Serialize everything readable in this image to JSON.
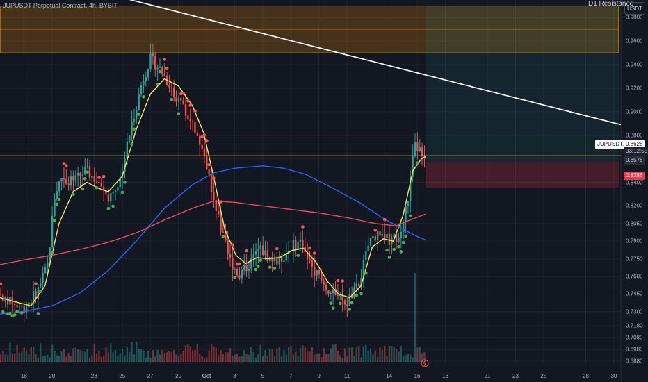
{
  "header": {
    "symbol_title": "JUPUSDT Perpetual Contract, 4h, BYBIT",
    "resistance_label": "D1 Resistance",
    "currency_button": "USDT"
  },
  "price_tags": {
    "symbol_tag": "JUPUSDT.P",
    "current_price": "0.8628",
    "countdown": "03:12:55",
    "level_a": "0.8576",
    "level_b": "0.8356"
  },
  "colors": {
    "bull": "#26a69a",
    "bear": "#ef5350",
    "ma_fast": "#f7e65d",
    "ma_mid": "#2962ff",
    "ma_slow": "#e84a5f",
    "dot_up": "#4caf50",
    "dot_down": "#ff5252",
    "resistance": "#ff9800",
    "trendline": "#ffffff"
  },
  "chart_data": {
    "type": "candlestick",
    "y_axis": {
      "range": [
        0.685,
        0.995
      ],
      "tick_labels": [
        "0.9800",
        "0.9600",
        "0.9400",
        "0.9200",
        "0.9000",
        "0.8800",
        "0.8600",
        "0.8400",
        "0.8200",
        "0.8050",
        "0.7900",
        "0.7750",
        "0.7600",
        "0.7450",
        "0.7300",
        "0.7180",
        "0.7080",
        "0.6980",
        "0.6880"
      ]
    },
    "x_axis": {
      "tick_labels": [
        "18",
        "20",
        "23",
        "25",
        "27",
        "29",
        "Oct",
        "3",
        "5",
        "7",
        "9",
        "11",
        "14",
        "16",
        "18",
        "21",
        "23",
        "25",
        "28",
        "30"
      ],
      "tick_days": [
        18,
        20,
        23,
        25,
        27,
        29,
        31,
        33,
        35,
        37,
        39,
        41,
        44,
        46,
        48,
        51,
        53,
        55,
        58,
        60
      ],
      "range_days": [
        16.3,
        60.5
      ],
      "note_days_from_sep_1": "tick_days 31 = Oct 1"
    },
    "price_path": [
      {
        "day": 16.3,
        "price": 0.745
      },
      {
        "day": 17.0,
        "price": 0.738
      },
      {
        "day": 18.0,
        "price": 0.733
      },
      {
        "day": 19.0,
        "price": 0.748
      },
      {
        "day": 19.7,
        "price": 0.77
      },
      {
        "day": 20.2,
        "price": 0.83
      },
      {
        "day": 20.7,
        "price": 0.845
      },
      {
        "day": 21.5,
        "price": 0.84
      },
      {
        "day": 22.4,
        "price": 0.85
      },
      {
        "day": 23.3,
        "price": 0.84
      },
      {
        "day": 24.0,
        "price": 0.828
      },
      {
        "day": 24.8,
        "price": 0.84
      },
      {
        "day": 25.5,
        "price": 0.88
      },
      {
        "day": 26.4,
        "price": 0.925
      },
      {
        "day": 27.0,
        "price": 0.945
      },
      {
        "day": 27.8,
        "price": 0.935
      },
      {
        "day": 28.7,
        "price": 0.915
      },
      {
        "day": 29.6,
        "price": 0.9
      },
      {
        "day": 30.5,
        "price": 0.875
      },
      {
        "day": 31.2,
        "price": 0.845
      },
      {
        "day": 31.9,
        "price": 0.805
      },
      {
        "day": 32.6,
        "price": 0.775
      },
      {
        "day": 33.3,
        "price": 0.762
      },
      {
        "day": 34.0,
        "price": 0.77
      },
      {
        "day": 34.8,
        "price": 0.784
      },
      {
        "day": 35.5,
        "price": 0.775
      },
      {
        "day": 36.2,
        "price": 0.773
      },
      {
        "day": 37.0,
        "price": 0.785
      },
      {
        "day": 37.8,
        "price": 0.79
      },
      {
        "day": 38.6,
        "price": 0.767
      },
      {
        "day": 39.4,
        "price": 0.752
      },
      {
        "day": 40.2,
        "price": 0.742
      },
      {
        "day": 41.0,
        "price": 0.738
      },
      {
        "day": 41.8,
        "price": 0.752
      },
      {
        "day": 42.6,
        "price": 0.79
      },
      {
        "day": 43.3,
        "price": 0.798
      },
      {
        "day": 44.0,
        "price": 0.79
      },
      {
        "day": 44.8,
        "price": 0.794
      },
      {
        "day": 45.4,
        "price": 0.83
      },
      {
        "day": 45.8,
        "price": 0.87
      },
      {
        "day": 46.2,
        "price": 0.868
      },
      {
        "day": 46.6,
        "price": 0.862
      }
    ],
    "series": [
      {
        "name": "ma_fast",
        "points": [
          [
            16.3,
            0.742
          ],
          [
            17.5,
            0.738
          ],
          [
            18.5,
            0.735
          ],
          [
            19.5,
            0.752
          ],
          [
            20.5,
            0.805
          ],
          [
            21.5,
            0.832
          ],
          [
            22.5,
            0.84
          ],
          [
            23.3,
            0.835
          ],
          [
            24.0,
            0.832
          ],
          [
            25.0,
            0.845
          ],
          [
            26.0,
            0.885
          ],
          [
            27.0,
            0.915
          ],
          [
            28.0,
            0.928
          ],
          [
            29.0,
            0.922
          ],
          [
            30.0,
            0.905
          ],
          [
            30.8,
            0.882
          ],
          [
            31.5,
            0.845
          ],
          [
            32.3,
            0.8
          ],
          [
            33.1,
            0.778
          ],
          [
            33.8,
            0.771
          ],
          [
            34.6,
            0.776
          ],
          [
            35.4,
            0.775
          ],
          [
            36.2,
            0.776
          ],
          [
            37.1,
            0.782
          ],
          [
            37.9,
            0.784
          ],
          [
            38.8,
            0.772
          ],
          [
            39.6,
            0.756
          ],
          [
            40.4,
            0.745
          ],
          [
            41.2,
            0.742
          ],
          [
            42.0,
            0.752
          ],
          [
            42.8,
            0.785
          ],
          [
            43.6,
            0.792
          ],
          [
            44.3,
            0.79
          ],
          [
            45.0,
            0.812
          ],
          [
            45.7,
            0.85
          ],
          [
            46.3,
            0.86
          ],
          [
            46.6,
            0.862
          ]
        ]
      },
      {
        "name": "ma_mid",
        "points": [
          [
            16.3,
            0.728
          ],
          [
            18.0,
            0.73
          ],
          [
            20.0,
            0.735
          ],
          [
            22.0,
            0.746
          ],
          [
            24.0,
            0.765
          ],
          [
            26.0,
            0.79
          ],
          [
            28.0,
            0.818
          ],
          [
            30.0,
            0.838
          ],
          [
            31.5,
            0.848
          ],
          [
            33.0,
            0.852
          ],
          [
            35.0,
            0.854
          ],
          [
            36.5,
            0.852
          ],
          [
            38.0,
            0.847
          ],
          [
            40.0,
            0.835
          ],
          [
            42.0,
            0.822
          ],
          [
            43.5,
            0.81
          ],
          [
            45.0,
            0.8
          ],
          [
            46.0,
            0.794
          ],
          [
            46.6,
            0.791
          ]
        ]
      },
      {
        "name": "ma_slow",
        "points": [
          [
            16.3,
            0.77
          ],
          [
            18.0,
            0.774
          ],
          [
            20.0,
            0.778
          ],
          [
            22.0,
            0.783
          ],
          [
            24.0,
            0.789
          ],
          [
            26.0,
            0.797
          ],
          [
            28.0,
            0.808
          ],
          [
            30.0,
            0.818
          ],
          [
            31.5,
            0.824
          ],
          [
            33.0,
            0.823
          ],
          [
            35.0,
            0.82
          ],
          [
            37.0,
            0.817
          ],
          [
            39.0,
            0.814
          ],
          [
            41.0,
            0.81
          ],
          [
            43.0,
            0.805
          ],
          [
            44.5,
            0.803
          ],
          [
            45.5,
            0.808
          ],
          [
            46.6,
            0.813
          ]
        ]
      }
    ],
    "resistance_zone": {
      "label": "D1 Resistance",
      "from_price": 0.95,
      "to_price": 0.99
    },
    "trendline": {
      "from": {
        "day": 24.0,
        "price": 1.0
      },
      "to": {
        "day": 60.5,
        "price": 0.889
      }
    },
    "horizontal_levels": [
      0.876,
      0.8628
    ],
    "current_price": 0.8628,
    "long_position": {
      "entry": 0.8576,
      "target": 0.99,
      "stop": 0.8356,
      "from_day": 46.6,
      "to_day": 60.5
    },
    "volume": {
      "spike_day": 45.8,
      "spike_relative": 1.0,
      "typical_relative": 0.18
    }
  }
}
